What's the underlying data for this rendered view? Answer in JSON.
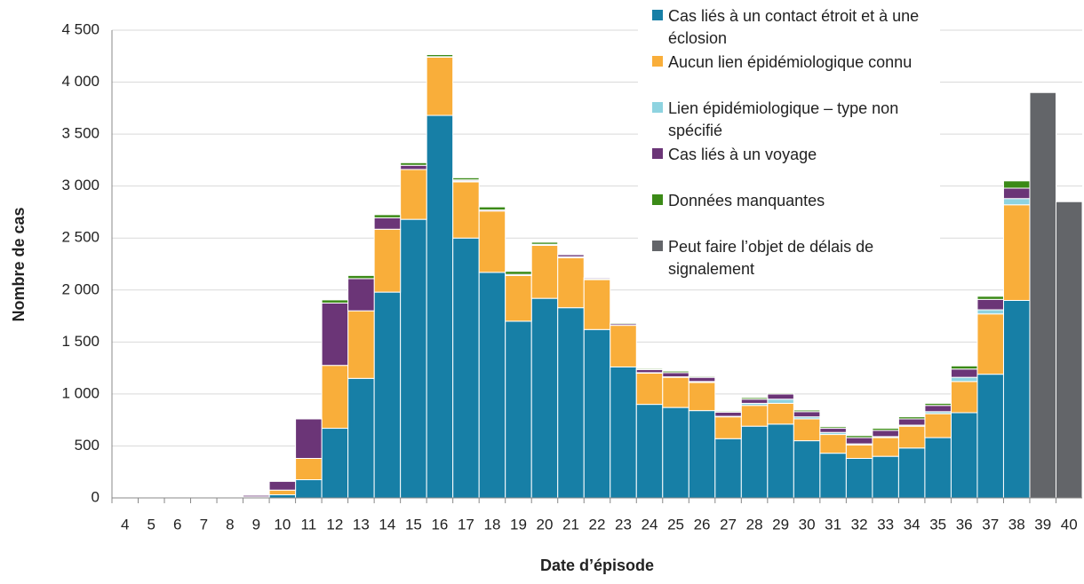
{
  "chart_data": {
    "type": "stacked-bar",
    "xlabel": "Date d’épisode",
    "ylabel": "Nombre de cas",
    "categories": [
      "4",
      "5",
      "6",
      "7",
      "8",
      "9",
      "10",
      "11",
      "12",
      "13",
      "14",
      "15",
      "16",
      "17",
      "18",
      "19",
      "20",
      "21",
      "22",
      "23",
      "24",
      "25",
      "26",
      "27",
      "28",
      "29",
      "30",
      "31",
      "32",
      "33",
      "34",
      "35",
      "36",
      "37",
      "38",
      "39",
      "40"
    ],
    "series": [
      {
        "name": "Cas liés à un contact étroit et à une éclosion",
        "color": "#177fa6",
        "values": [
          2,
          2,
          2,
          2,
          2,
          5,
          30,
          175,
          670,
          1150,
          1980,
          2680,
          3680,
          2500,
          2170,
          1700,
          1920,
          1830,
          1620,
          1260,
          900,
          870,
          840,
          570,
          690,
          710,
          550,
          430,
          380,
          400,
          480,
          580,
          820,
          1190,
          1900,
          null,
          null
        ]
      },
      {
        "name": "Aucun lien épidémiologique connu",
        "color": "#f9ae3a",
        "values": [
          null,
          null,
          null,
          null,
          null,
          5,
          45,
          205,
          605,
          650,
          605,
          480,
          560,
          540,
          590,
          440,
          510,
          480,
          480,
          400,
          300,
          290,
          270,
          210,
          200,
          200,
          210,
          180,
          130,
          180,
          210,
          230,
          300,
          580,
          920,
          null,
          null
        ]
      },
      {
        "name": "Lien épidémiologique – type non spécifié",
        "color": "#8ed3e0",
        "values": [
          null,
          null,
          null,
          null,
          null,
          null,
          null,
          null,
          null,
          null,
          null,
          null,
          5,
          10,
          null,
          null,
          10,
          10,
          10,
          null,
          5,
          5,
          10,
          5,
          20,
          40,
          20,
          20,
          10,
          10,
          10,
          20,
          40,
          40,
          60,
          null,
          null
        ]
      },
      {
        "name": "Cas liés à un voyage",
        "color": "#6b3577",
        "values": [
          null,
          null,
          null,
          null,
          null,
          15,
          85,
          380,
          600,
          310,
          110,
          40,
          null,
          10,
          10,
          10,
          null,
          20,
          10,
          15,
          30,
          40,
          40,
          40,
          40,
          50,
          50,
          40,
          60,
          60,
          60,
          60,
          80,
          100,
          100,
          null,
          null
        ]
      },
      {
        "name": "Données manquantes",
        "color": "#3b8a17",
        "values": [
          null,
          null,
          null,
          null,
          null,
          null,
          5,
          5,
          30,
          30,
          30,
          25,
          20,
          20,
          30,
          30,
          20,
          null,
          null,
          10,
          10,
          15,
          10,
          10,
          15,
          10,
          15,
          15,
          20,
          20,
          20,
          20,
          30,
          30,
          70,
          null,
          null
        ]
      },
      {
        "name": "Peut faire l’objet de délais de signalement",
        "color": "#636569",
        "values": [
          null,
          null,
          null,
          null,
          null,
          null,
          null,
          null,
          null,
          null,
          null,
          null,
          null,
          null,
          null,
          null,
          null,
          null,
          null,
          null,
          null,
          null,
          null,
          null,
          null,
          null,
          null,
          null,
          null,
          null,
          null,
          null,
          null,
          null,
          null,
          3900,
          2850
        ]
      }
    ],
    "ylim": [
      0,
      4500
    ],
    "yticks": [
      0,
      500,
      {
        "value": 1000,
        "label": "1 000"
      },
      {
        "value": 1500,
        "label": "1 500"
      },
      {
        "value": 2000,
        "label": "2 000"
      },
      {
        "value": 2500,
        "label": "2 500"
      },
      {
        "value": 3000,
        "label": "3 000"
      },
      {
        "value": 3500,
        "label": "3 500"
      },
      {
        "value": 4000,
        "label": "4 000"
      },
      {
        "value": 4500,
        "label": "4 500"
      }
    ],
    "grid": true
  }
}
